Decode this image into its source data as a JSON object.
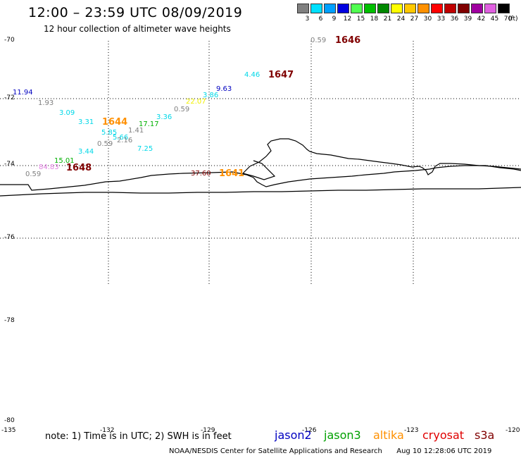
{
  "header": {
    "title": "12:00 – 23:59 UTC 08/09/2019",
    "subtitle": "12 hour collection of altimeter wave heights"
  },
  "color_scale": {
    "unit": "(ft)",
    "bins": [
      {
        "label": "3",
        "color": "#808080"
      },
      {
        "label": "6",
        "color": "#00e0ff"
      },
      {
        "label": "9",
        "color": "#00a0ff"
      },
      {
        "label": "12",
        "color": "#0000e0"
      },
      {
        "label": "15",
        "color": "#50ff50"
      },
      {
        "label": "18",
        "color": "#00c000"
      },
      {
        "label": "21",
        "color": "#008800"
      },
      {
        "label": "24",
        "color": "#ffff00"
      },
      {
        "label": "27",
        "color": "#ffc800"
      },
      {
        "label": "30",
        "color": "#ff9000"
      },
      {
        "label": "33",
        "color": "#ff0000"
      },
      {
        "label": "36",
        "color": "#c00000"
      },
      {
        "label": "39",
        "color": "#800000"
      },
      {
        "label": "42",
        "color": "#a000a0"
      },
      {
        "label": "45",
        "color": "#e060e0"
      },
      {
        "label": "70",
        "color": "#000000"
      }
    ]
  },
  "axes": {
    "lat_labels": [
      "-70",
      "-72",
      "-74",
      "-76",
      "-78",
      "-80"
    ],
    "lon_labels": [
      "-135",
      "-132",
      "-129",
      "-126",
      "-123",
      "-120"
    ]
  },
  "observations": [
    {
      "text": "0.59",
      "color": "#808080"
    },
    {
      "text": "1646",
      "color": "#800000"
    },
    {
      "text": "4.46",
      "color": "#00d8e8"
    },
    {
      "text": "1647",
      "color": "#800000"
    },
    {
      "text": "9.63",
      "color": "#0000c0"
    },
    {
      "text": "3.86",
      "color": "#00d8e8"
    },
    {
      "text": "22.07",
      "color": "#f0f000"
    },
    {
      "text": "11.94",
      "color": "#0000c0"
    },
    {
      "text": "1.93",
      "color": "#808080"
    },
    {
      "text": "0.59",
      "color": "#808080"
    },
    {
      "text": "3.09",
      "color": "#00d8e8"
    },
    {
      "text": "3.36",
      "color": "#00d8e8"
    },
    {
      "text": "3.31",
      "color": "#00d8e8"
    },
    {
      "text": "1644",
      "color": "#ff9000"
    },
    {
      "text": "17.17",
      "color": "#00b000"
    },
    {
      "text": "1.41",
      "color": "#808080"
    },
    {
      "text": "5.85",
      "color": "#00d8e8"
    },
    {
      "text": "5.66",
      "color": "#00d8e8"
    },
    {
      "text": "2.16",
      "color": "#808080"
    },
    {
      "text": "0.59",
      "color": "#808080"
    },
    {
      "text": "7.25",
      "color": "#00d8e8"
    },
    {
      "text": "3.44",
      "color": "#00d8e8"
    },
    {
      "text": "15.01",
      "color": "#00b000"
    },
    {
      "text": "84.83",
      "color": "#e080e0"
    },
    {
      "text": "1648",
      "color": "#800000"
    },
    {
      "text": "0.59",
      "color": "#808080"
    },
    {
      "text": "37.60",
      "color": "#800000"
    },
    {
      "text": "1641",
      "color": "#ff9000"
    }
  ],
  "footer": {
    "note": "note: 1) Time is in UTC; 2) SWH is in feet",
    "satellites": [
      {
        "name": "jason2",
        "color": "#0000c0"
      },
      {
        "name": "jason3",
        "color": "#00a000"
      },
      {
        "name": "altika",
        "color": "#ff9000"
      },
      {
        "name": "cryosat",
        "color": "#e00000"
      },
      {
        "name": "s3a",
        "color": "#800000"
      }
    ],
    "credit": "NOAA/NESDIS Center for Satellite Applications and Research",
    "generated": "Aug 10 12:28:06 UTC 2019"
  }
}
